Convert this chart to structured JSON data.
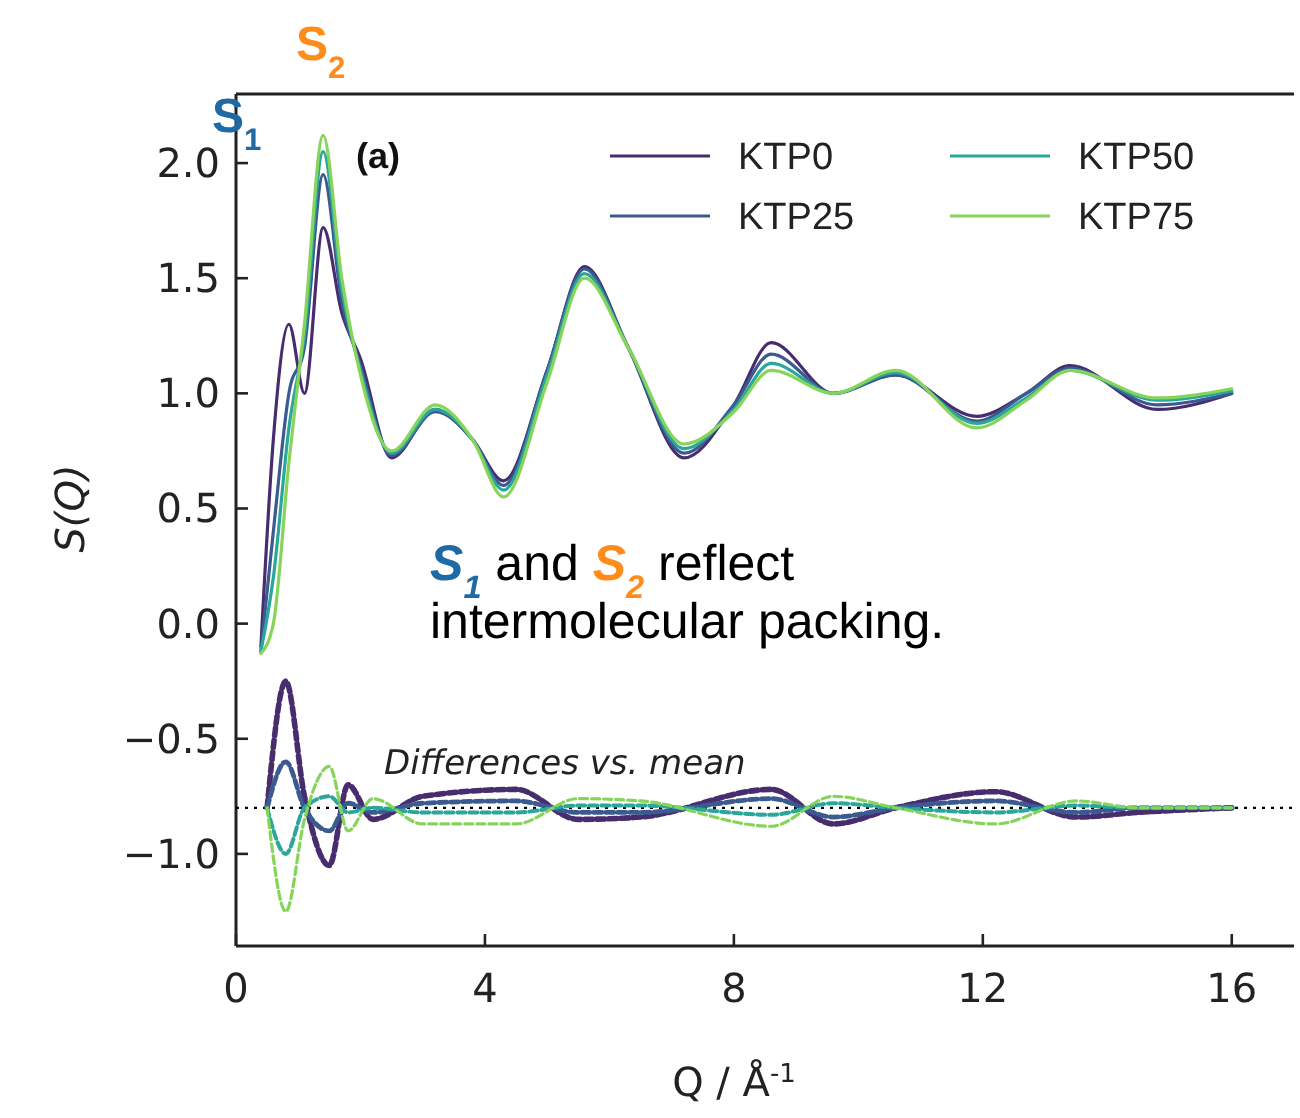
{
  "chart_data": {
    "type": "line",
    "xlabel": "Q / Å$^{-1}$",
    "ylabel": "S(Q)",
    "xlim": [
      0,
      17
    ],
    "xticks": [
      0,
      4,
      8,
      12,
      16
    ],
    "ylim": [
      -1.4,
      2.3
    ],
    "yticks": [
      {
        "value": -1,
        "label": "−1.0"
      },
      -0.5,
      {
        "value": 0,
        "label": "0.0"
      },
      0.5,
      {
        "value": 1,
        "label": "1.0"
      },
      1.5,
      {
        "value": 2,
        "label": "2.0"
      }
    ],
    "x": [
      0.4,
      0.6,
      0.85,
      1.1,
      1.4,
      1.7,
      2.0,
      2.5,
      3.2,
      3.8,
      4.3,
      5.0,
      5.6,
      6.3,
      7.2,
      8.0,
      8.6,
      9.6,
      10.6,
      11.9,
      12.7,
      13.4,
      14.8,
      16
    ],
    "series": [
      {
        "name": "KTP0",
        "color": "#472d6e",
        "values": [
          -0.1,
          0.8,
          1.3,
          1.0,
          1.72,
          1.35,
          1.15,
          0.72,
          0.93,
          0.8,
          0.62,
          1.1,
          1.55,
          1.2,
          0.72,
          0.95,
          1.22,
          1.0,
          1.08,
          0.9,
          1.0,
          1.12,
          0.93,
          1.0
        ]
      },
      {
        "name": "KTP25",
        "color": "#3b5a8f",
        "values": [
          -0.12,
          0.4,
          1.0,
          1.2,
          1.95,
          1.4,
          1.12,
          0.73,
          0.92,
          0.8,
          0.6,
          1.1,
          1.54,
          1.2,
          0.74,
          0.95,
          1.17,
          1.0,
          1.08,
          0.88,
          1.0,
          1.11,
          0.95,
          1.0
        ]
      },
      {
        "name": "KTP50",
        "color": "#2aa69a",
        "values": [
          -0.12,
          0.2,
          0.85,
          1.25,
          2.05,
          1.45,
          1.1,
          0.74,
          0.93,
          0.8,
          0.58,
          1.08,
          1.52,
          1.2,
          0.76,
          0.93,
          1.13,
          1.0,
          1.09,
          0.87,
          0.98,
          1.1,
          0.97,
          1.01
        ]
      },
      {
        "name": "KTP75",
        "color": "#86d45a",
        "values": [
          -0.13,
          0.0,
          0.7,
          1.3,
          2.12,
          1.5,
          1.08,
          0.75,
          0.95,
          0.8,
          0.55,
          1.05,
          1.5,
          1.2,
          0.78,
          0.92,
          1.1,
          1.0,
          1.1,
          0.85,
          0.97,
          1.1,
          0.98,
          1.02
        ]
      },
      {
        "color": "#472d6e",
        "line_style": "dashed",
        "x": [
          0.5,
          0.8,
          1.1,
          1.5,
          1.8,
          2.2,
          3.0,
          4.5,
          5.5,
          6.5,
          8.6,
          9.6,
          10.6,
          12.2,
          13.5,
          14.5,
          16
        ],
        "values": [
          -0.8,
          -0.25,
          -0.75,
          -1.05,
          -0.7,
          -0.85,
          -0.75,
          -0.72,
          -0.85,
          -0.84,
          -0.72,
          -0.87,
          -0.8,
          -0.73,
          -0.84,
          -0.82,
          -0.8
        ]
      },
      {
        "color": "#3b5a8f",
        "line_style": "dashed",
        "x": [
          0.5,
          0.8,
          1.1,
          1.5,
          1.8,
          2.2,
          3.0,
          4.5,
          5.5,
          6.5,
          8.6,
          9.6,
          10.6,
          12.2,
          13.5,
          14.5,
          16
        ],
        "values": [
          -0.8,
          -0.6,
          -0.8,
          -0.9,
          -0.78,
          -0.82,
          -0.78,
          -0.77,
          -0.82,
          -0.82,
          -0.76,
          -0.84,
          -0.8,
          -0.77,
          -0.82,
          -0.8,
          -0.8
        ]
      },
      {
        "color": "#2aa69a",
        "line_style": "dashed",
        "x": [
          0.5,
          0.8,
          1.1,
          1.5,
          1.8,
          2.2,
          3.0,
          4.5,
          5.5,
          6.5,
          8.6,
          9.6,
          10.6,
          12.2,
          13.5,
          14.5,
          16
        ],
        "values": [
          -0.8,
          -1.0,
          -0.8,
          -0.75,
          -0.82,
          -0.8,
          -0.82,
          -0.82,
          -0.79,
          -0.79,
          -0.83,
          -0.78,
          -0.8,
          -0.82,
          -0.79,
          -0.8,
          -0.8
        ]
      },
      {
        "color": "#86d45a",
        "line_style": "dashed",
        "x": [
          0.5,
          0.8,
          1.1,
          1.5,
          1.8,
          2.2,
          3.0,
          4.5,
          5.5,
          6.5,
          8.6,
          9.6,
          10.6,
          12.2,
          13.5,
          14.5,
          16
        ],
        "values": [
          -0.8,
          -1.25,
          -0.85,
          -0.62,
          -0.9,
          -0.76,
          -0.87,
          -0.87,
          -0.76,
          -0.77,
          -0.88,
          -0.75,
          -0.8,
          -0.87,
          -0.77,
          -0.8,
          -0.8
        ]
      }
    ],
    "ref_lines": [
      {
        "axis": "y",
        "value": -0.8,
        "color": "#000000",
        "line_style": "dotted"
      }
    ],
    "annotations": [
      "S$_{1}$",
      "S$_{2}$",
      "(a)",
      "Differences vs. mean",
      "S$_{1}$ and S$_{2}$ reflect intermolecular packing."
    ],
    "legend": "top right",
    "grid": false,
    "marker": "none",
    "line_style": "solid"
  }
}
